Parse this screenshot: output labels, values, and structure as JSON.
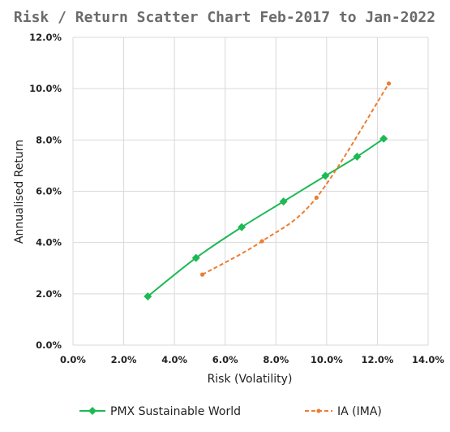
{
  "chart_data": {
    "type": "scatter",
    "title": "Risk / Return Scatter Chart Feb-2017 to Jan-2022",
    "xlabel": "Risk (Volatility)",
    "ylabel": "Annualised Return",
    "xlim": [
      0,
      14
    ],
    "ylim": [
      0,
      12
    ],
    "x_ticks": [
      "0.0%",
      "2.0%",
      "4.0%",
      "6.0%",
      "8.0%",
      "10.0%",
      "12.0%",
      "14.0%"
    ],
    "y_ticks": [
      "0.0%",
      "2.0%",
      "4.0%",
      "6.0%",
      "8.0%",
      "10.0%",
      "12.0%"
    ],
    "grid": "vertical and horizontal",
    "legend": "bottom",
    "series": [
      {
        "name": "PMX Sustainable World",
        "color": "#1db954",
        "marker": "diamond",
        "line": "solid",
        "points": [
          [
            2.95,
            1.9
          ],
          [
            4.85,
            3.4
          ],
          [
            6.65,
            4.6
          ],
          [
            8.3,
            5.6
          ],
          [
            9.95,
            6.6
          ],
          [
            11.2,
            7.35
          ],
          [
            12.25,
            8.05
          ]
        ]
      },
      {
        "name": "IA (IMA)",
        "color": "#ed7d31",
        "marker": "circle",
        "line": "dashed",
        "points": [
          [
            5.1,
            2.75
          ],
          [
            7.45,
            4.05
          ],
          [
            9.6,
            5.75
          ],
          [
            12.45,
            10.2
          ]
        ]
      }
    ]
  }
}
